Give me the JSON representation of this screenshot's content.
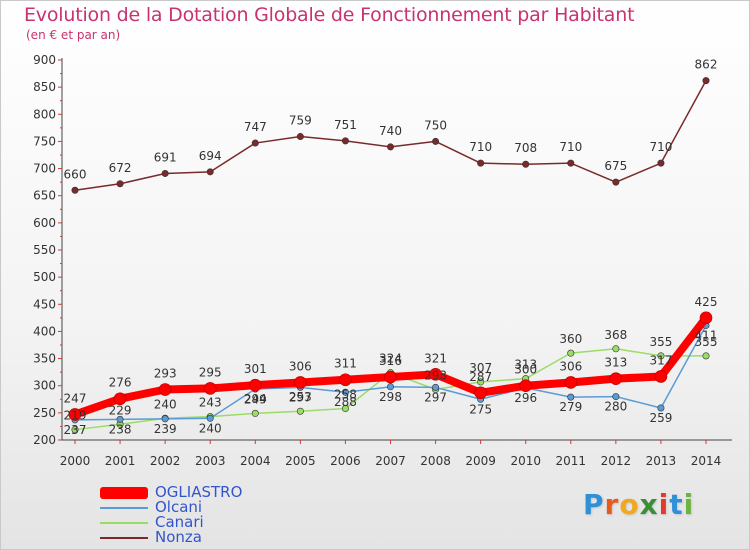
{
  "chart_data": {
    "type": "line",
    "title": "Evolution de la Dotation Globale de Fonctionnement par Habitant",
    "subtitle": "(en € et par an)",
    "xlabel": "",
    "ylabel": "",
    "ylim": [
      200,
      900
    ],
    "yticks": [
      200,
      250,
      300,
      350,
      400,
      450,
      500,
      550,
      600,
      650,
      700,
      750,
      800,
      850,
      900
    ],
    "categories": [
      "2000",
      "2001",
      "2002",
      "2003",
      "2004",
      "2005",
      "2006",
      "2007",
      "2008",
      "2009",
      "2010",
      "2011",
      "2012",
      "2013",
      "2014"
    ],
    "grid": false,
    "legend_position": "bottom-left",
    "series": [
      {
        "name": "OGLIASTRO",
        "color": "#ff0000",
        "values": [
          247,
          276,
          293,
          295,
          301,
          306,
          311,
          316,
          321,
          287,
          300,
          306,
          313,
          317,
          425
        ],
        "labels": [
          "247",
          "276",
          "293",
          "295",
          "301",
          "306",
          "311",
          "316",
          "321",
          "287",
          "300",
          "306",
          "313",
          "317",
          "425"
        ]
      },
      {
        "name": "Olcani",
        "color": "#5b9bd5",
        "values": [
          237,
          238,
          239,
          240,
          294,
          297,
          288,
          298,
          297,
          275,
          296,
          279,
          280,
          259,
          411
        ],
        "labels": [
          "237",
          "238",
          "239",
          "240",
          "294",
          "297",
          "288",
          "298",
          "297",
          "275",
          "296",
          "279",
          "280",
          "259",
          "411"
        ]
      },
      {
        "name": "Canari",
        "color": "#99dd66",
        "values": [
          219,
          229,
          240,
          243,
          249,
          253,
          258,
          324,
          293,
          307,
          313,
          360,
          368,
          355,
          355
        ],
        "labels": [
          "219",
          "229",
          "240",
          "243",
          "249",
          "253",
          "258",
          "324",
          "293",
          "307",
          "313",
          "360",
          "368",
          "355",
          "355"
        ]
      },
      {
        "name": "Nonza",
        "color": "#7a2a2a",
        "values": [
          660,
          672,
          691,
          694,
          747,
          759,
          751,
          740,
          750,
          710,
          708,
          710,
          675,
          710,
          862
        ],
        "labels": [
          "660",
          "672",
          "691",
          "694",
          "747",
          "759",
          "751",
          "740",
          "750",
          "710",
          "708",
          "710",
          "675",
          "710",
          "862"
        ]
      }
    ]
  },
  "logo": {
    "letters": [
      "P",
      "r",
      "o",
      "x",
      "i",
      "t",
      "i"
    ],
    "colors": [
      "#2f8fd8",
      "#e85a1c",
      "#f2a81e",
      "#3a8e35",
      "#e03a2c",
      "#2f8fd8",
      "#6db33f"
    ]
  }
}
